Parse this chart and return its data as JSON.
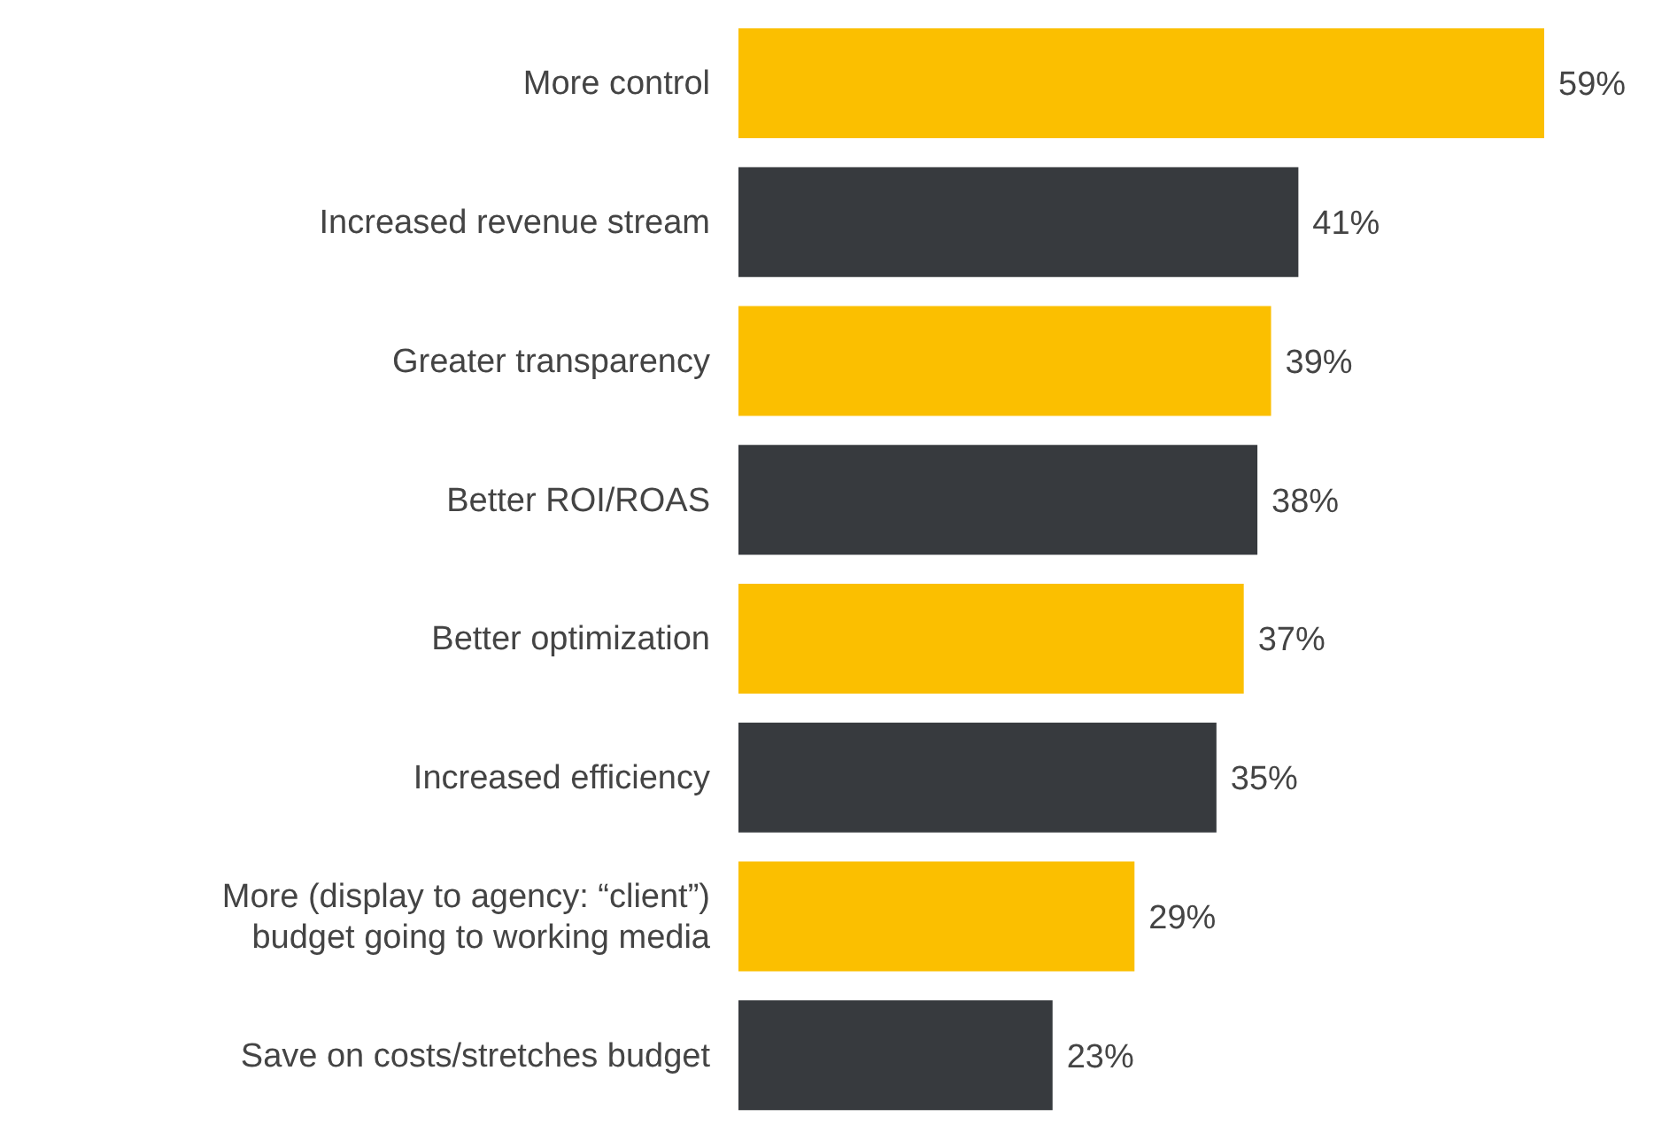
{
  "chart_data": {
    "type": "bar",
    "orientation": "horizontal",
    "categories": [
      "More control",
      "Increased revenue stream",
      "Greater transparency",
      "Better ROI/ROAS",
      "Better optimization",
      "Increased efficiency",
      "More (display to agency: “client”) budget going to working media",
      "Save on costs/stretches budget"
    ],
    "values": [
      59,
      41,
      39,
      38,
      37,
      35,
      29,
      23
    ],
    "colors": [
      "#fbbf00",
      "#373a3e",
      "#fbbf00",
      "#373a3e",
      "#fbbf00",
      "#373a3e",
      "#fbbf00",
      "#373a3e"
    ],
    "value_labels": [
      "59%",
      "41%",
      "39%",
      "38%",
      "37%",
      "35%",
      "29%",
      "23%"
    ],
    "grid": false,
    "legend": false
  }
}
